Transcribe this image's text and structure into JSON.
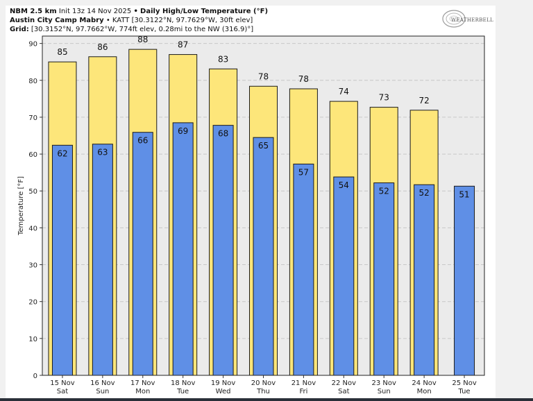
{
  "header": {
    "line1_model": "NBM 2.5 km",
    "line1_init": "Init 13z 14 Nov 2025",
    "line1_sep": "•",
    "line1_product": "Daily High/Low Temperature (°F)",
    "line2_station": "Austin City Camp Mabry",
    "line2_sep": "•",
    "line2_info": "KATT [30.3122°N, 97.7629°W, 30ft elev]",
    "line3_label": "Grid:",
    "line3_info": "[30.3152°N, 97.7662°W, 774ft elev, 0.28mi to the NW (316.9)°]"
  },
  "logo": {
    "text": "WEATHERBELL"
  },
  "colors": {
    "high_bar": "#fde67a",
    "low_bar": "#5f8fe6",
    "bar_edge": "#1a1a1a",
    "plot_bg": "#ebebeb",
    "grid": "#c8c8c8"
  },
  "chart_data": {
    "type": "bar",
    "title": "Daily High/Low Temperature (°F)",
    "xlabel": "",
    "ylabel": "Temperature [°F]",
    "ylim": [
      0,
      92
    ],
    "yticks": [
      0,
      10,
      20,
      30,
      40,
      50,
      60,
      70,
      80,
      90
    ],
    "categories": [
      {
        "date": "15 Nov",
        "day": "Sat"
      },
      {
        "date": "16 Nov",
        "day": "Sun"
      },
      {
        "date": "17 Nov",
        "day": "Mon"
      },
      {
        "date": "18 Nov",
        "day": "Tue"
      },
      {
        "date": "19 Nov",
        "day": "Wed"
      },
      {
        "date": "20 Nov",
        "day": "Thu"
      },
      {
        "date": "21 Nov",
        "day": "Fri"
      },
      {
        "date": "22 Nov",
        "day": "Sat"
      },
      {
        "date": "23 Nov",
        "day": "Sun"
      },
      {
        "date": "24 Nov",
        "day": "Mon"
      },
      {
        "date": "25 Nov",
        "day": "Tue"
      }
    ],
    "series": [
      {
        "name": "High",
        "values": [
          85.0,
          86.4,
          88.4,
          87.0,
          83.1,
          78.4,
          77.7,
          74.3,
          72.7,
          71.9,
          null
        ],
        "labels": [
          "85",
          "86",
          "88",
          "87",
          "83",
          "78",
          "78",
          "74",
          "73",
          "72",
          null
        ]
      },
      {
        "name": "Low",
        "values": [
          62.4,
          62.7,
          65.9,
          68.5,
          67.8,
          64.5,
          57.3,
          53.8,
          52.2,
          51.7,
          51.3
        ],
        "labels": [
          "62",
          "63",
          "66",
          "69",
          "68",
          "65",
          "57",
          "54",
          "52",
          "52",
          "51"
        ]
      }
    ],
    "grid": true
  }
}
